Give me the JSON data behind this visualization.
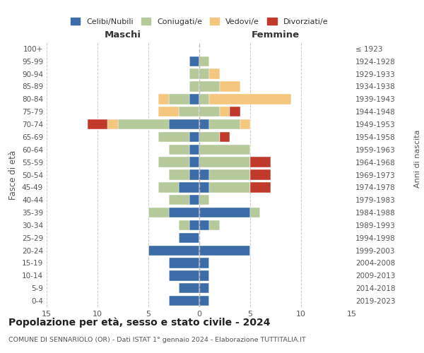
{
  "age_groups": [
    "0-4",
    "5-9",
    "10-14",
    "15-19",
    "20-24",
    "25-29",
    "30-34",
    "35-39",
    "40-44",
    "45-49",
    "50-54",
    "55-59",
    "60-64",
    "65-69",
    "70-74",
    "75-79",
    "80-84",
    "85-89",
    "90-94",
    "95-99",
    "100+"
  ],
  "birth_years": [
    "2019-2023",
    "2014-2018",
    "2009-2013",
    "2004-2008",
    "1999-2003",
    "1994-1998",
    "1989-1993",
    "1984-1988",
    "1979-1983",
    "1974-1978",
    "1969-1973",
    "1964-1968",
    "1959-1963",
    "1954-1958",
    "1949-1953",
    "1944-1948",
    "1939-1943",
    "1934-1938",
    "1929-1933",
    "1924-1928",
    "≤ 1923"
  ],
  "males": {
    "celibi": [
      3,
      2,
      3,
      3,
      5,
      2,
      1,
      3,
      1,
      2,
      1,
      1,
      1,
      1,
      3,
      0,
      1,
      0,
      0,
      1,
      0
    ],
    "coniugati": [
      0,
      0,
      0,
      0,
      0,
      0,
      1,
      2,
      2,
      2,
      2,
      3,
      2,
      3,
      5,
      2,
      2,
      1,
      1,
      0,
      0
    ],
    "vedovi": [
      0,
      0,
      0,
      0,
      0,
      0,
      0,
      0,
      0,
      0,
      0,
      0,
      0,
      0,
      1,
      2,
      1,
      0,
      0,
      0,
      0
    ],
    "divorziati": [
      0,
      0,
      0,
      0,
      0,
      0,
      0,
      0,
      0,
      0,
      0,
      0,
      0,
      0,
      2,
      0,
      0,
      0,
      0,
      0,
      0
    ]
  },
  "females": {
    "nubili": [
      1,
      1,
      1,
      1,
      5,
      0,
      1,
      5,
      0,
      1,
      1,
      0,
      0,
      0,
      1,
      0,
      0,
      0,
      0,
      0,
      0
    ],
    "coniugate": [
      0,
      0,
      0,
      0,
      0,
      0,
      1,
      1,
      1,
      4,
      4,
      5,
      5,
      2,
      3,
      2,
      1,
      2,
      1,
      1,
      0
    ],
    "vedove": [
      0,
      0,
      0,
      0,
      0,
      0,
      0,
      0,
      0,
      0,
      0,
      0,
      0,
      0,
      1,
      1,
      8,
      2,
      1,
      0,
      0
    ],
    "divorziate": [
      0,
      0,
      0,
      0,
      0,
      0,
      0,
      0,
      0,
      2,
      2,
      2,
      0,
      1,
      0,
      1,
      0,
      0,
      0,
      0,
      0
    ]
  },
  "colors": {
    "celibi_nubili": "#3d6da8",
    "coniugati": "#b5c99a",
    "vedovi": "#f5c77e",
    "divorziati": "#c0392b"
  },
  "title": "Popolazione per età, sesso e stato civile - 2024",
  "subtitle": "COMUNE DI SENNARIOLO (OR) - Dati ISTAT 1° gennaio 2024 - Elaborazione TUTTITALIA.IT",
  "xlabel_left": "Maschi",
  "xlabel_right": "Femmine",
  "ylabel_left": "Fasce di età",
  "ylabel_right": "Anni di nascita",
  "xlim": 15,
  "legend_labels": [
    "Celibi/Nubili",
    "Coniugati/e",
    "Vedovi/e",
    "Divorziati/e"
  ],
  "bg_color": "#ffffff"
}
